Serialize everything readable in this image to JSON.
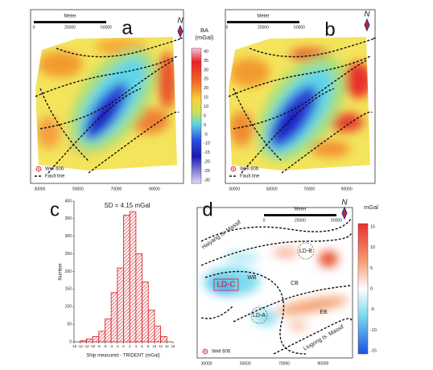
{
  "panels": {
    "a": {
      "letter": "a",
      "north": "N",
      "scale_bar": {
        "title": "Meter",
        "ticks": [
          "0",
          "25000",
          "50000"
        ]
      },
      "x_ticks": [
        "30000",
        "50000",
        "70000",
        "90000"
      ],
      "legend": [
        "Well 606",
        "Fault line"
      ],
      "colorbar": {
        "title": [
          "BA",
          "(mGal)"
        ],
        "ticks": [
          "40",
          "35",
          "30",
          "25",
          "20",
          "15",
          "10",
          "5",
          "0",
          "-5",
          "-10",
          "-15",
          "-20",
          "-25",
          "-30"
        ]
      }
    },
    "b": {
      "letter": "b",
      "north": "N",
      "scale_bar": {
        "title": "Meter",
        "ticks": [
          "0",
          "25000",
          "50000"
        ]
      },
      "x_ticks": [
        "30000",
        "50000",
        "70000",
        "90000"
      ],
      "legend": [
        "Well 606",
        "Fault line"
      ]
    },
    "d": {
      "letter": "d",
      "north": "N",
      "scale_bar": {
        "title": "Meter",
        "ticks": [
          "0",
          "25000",
          "50000"
        ]
      },
      "x_ticks": [
        "30000",
        "50000",
        "70000",
        "90000"
      ],
      "legend": [
        "Well 606"
      ],
      "colorbar": {
        "title": [
          "mGal"
        ],
        "ticks": [
          "15",
          "10",
          "5",
          "0",
          "-5",
          "-10",
          "-15"
        ]
      },
      "labels": [
        "Haiyang Is. Massif",
        "LD-B",
        "WB",
        "LD-C",
        "CB",
        "LD-A",
        "EB",
        "Liugong Is. Massif"
      ]
    }
  },
  "chart_data": {
    "type": "histogram",
    "label": "c",
    "title": "SD = 4.15 mGal",
    "x_label": "Ship measured - TRIDENT (mGal)",
    "y_label": "Number",
    "bins": [
      -14,
      -12,
      -10,
      -8,
      -6,
      -4,
      -2,
      0,
      2,
      4,
      6,
      8,
      10,
      12,
      14
    ],
    "values": [
      3,
      8,
      15,
      30,
      65,
      140,
      210,
      360,
      370,
      250,
      170,
      90,
      45,
      15
    ],
    "color": "#d7191c",
    "xlim": [
      -16,
      16
    ],
    "xticks": [
      -16,
      -14,
      -12,
      -10,
      -8,
      -6,
      -4,
      -2,
      0,
      2,
      4,
      6,
      8,
      10,
      12,
      14,
      16
    ],
    "ylim": [
      0,
      400
    ],
    "yticks": [
      0,
      50,
      100,
      150,
      200,
      250,
      300,
      350,
      400
    ]
  }
}
